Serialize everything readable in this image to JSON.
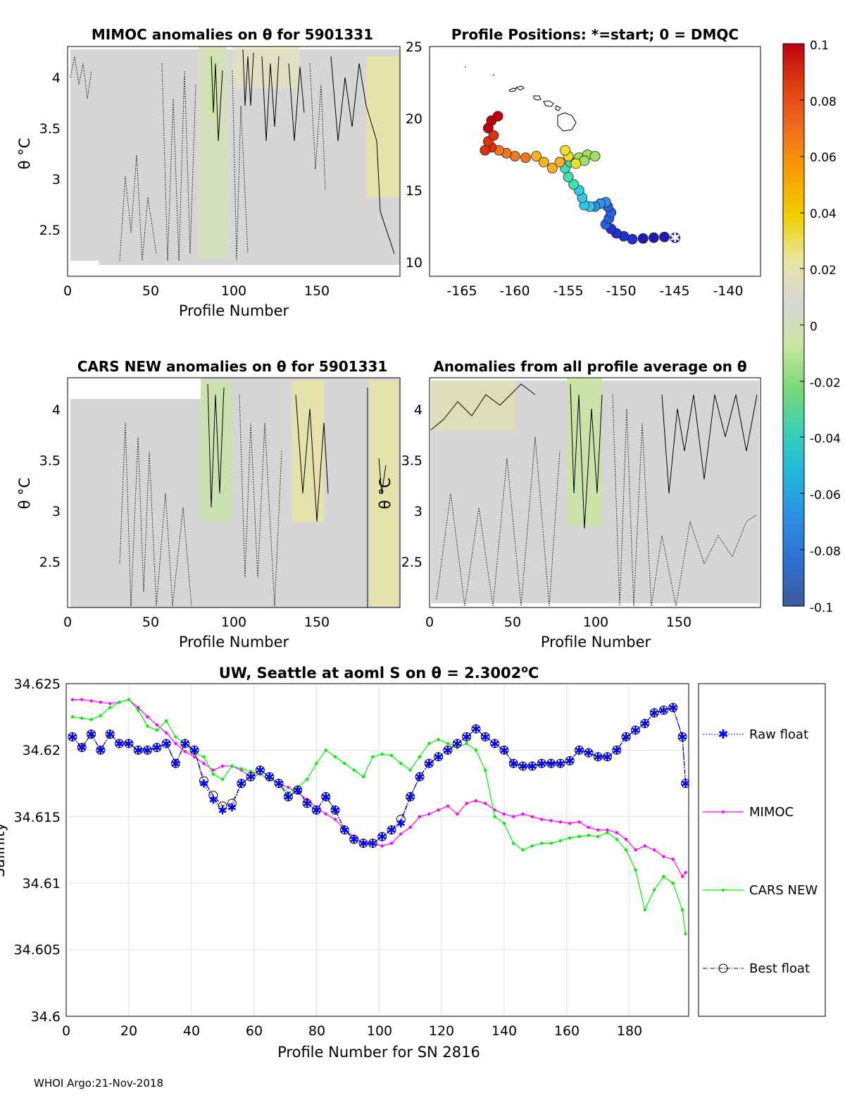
{
  "footer": "WHOI Argo:21-Nov-2018",
  "colorbar": {
    "ticks": [
      "0.1",
      "0.08",
      "0.06",
      "0.04",
      "0.02",
      "0",
      "-0.02",
      "-0.04",
      "-0.06",
      "-0.08",
      "-0.1"
    ],
    "range": [
      -0.1,
      0.1
    ],
    "colors": [
      "#3a5a9a",
      "#2e6fd0",
      "#2c8be0",
      "#22b4e0",
      "#38d0b8",
      "#78d878",
      "#c8e6a0",
      "#d6d6d6",
      "#e8e6a0",
      "#f0d000",
      "#f8a000",
      "#f07020",
      "#e04010",
      "#c00010"
    ]
  },
  "panels": {
    "mimoc_anom": {
      "title": "MIMOC anomalies on θ  for 5901331",
      "xlabel": "Profile Number",
      "ylabel": "θ °C",
      "xticks": [
        "0",
        "50",
        "100",
        "150"
      ],
      "yticks": [
        "4",
        "3.5",
        "3",
        "2.5"
      ]
    },
    "positions": {
      "title": "Profile Positions: *=start; 0 = DMQC",
      "xticks": [
        "-165",
        "-160",
        "-155",
        "-150",
        "-145",
        "-140"
      ],
      "yticks": [
        "25",
        "20",
        "15",
        "10"
      ]
    },
    "cars_anom": {
      "title": "CARS NEW anomalies on θ for 5901331",
      "xlabel": "Profile Number",
      "ylabel": "θ °C",
      "xticks": [
        "0",
        "50",
        "100",
        "150"
      ],
      "yticks": [
        "4",
        "3.5",
        "3",
        "2.5"
      ]
    },
    "avg_anom": {
      "title": "Anomalies from all profile average on θ",
      "xlabel": "Profile Number",
      "ylabel": "θ °C",
      "xticks": [
        "0",
        "50",
        "100",
        "150"
      ],
      "yticks": [
        "4",
        "3.5",
        "3",
        "2.5"
      ]
    },
    "salinity": {
      "title_main": "UW, Seattle at aoml S on θ = 2.3002",
      "title_sup": "o",
      "title_end": "C",
      "xlabel": "Profile Number for SN 2816",
      "ylabel": "Salinity",
      "xticks": [
        "0",
        "20",
        "40",
        "60",
        "80",
        "100",
        "120",
        "140",
        "160",
        "180"
      ],
      "yticks": [
        "34.625",
        "34.62",
        "34.615",
        "34.61",
        "34.605",
        "34.6"
      ],
      "legend": [
        "Raw float",
        "MIMOC",
        "CARS NEW",
        "Best float"
      ]
    }
  },
  "chart_data": [
    {
      "type": "heatmap",
      "id": "mimoc_anom",
      "title": "MIMOC anomalies on θ for 5901331",
      "xlabel": "Profile Number",
      "ylabel": "θ °C",
      "xlim": [
        0,
        200
      ],
      "ylim": [
        2.1,
        4.3
      ],
      "description_values": "mostly near 0 (grey); positive ~0.02 (yellow) near profile 190, 80-85 negative ~-0.01 (light green)"
    },
    {
      "type": "scatter",
      "id": "positions",
      "title": "Profile Positions: *=start; 0 = DMQC",
      "xlim": [
        -168,
        -137
      ],
      "ylim": [
        9.5,
        25
      ],
      "track": [
        [
          -145.0,
          12.1
        ],
        [
          -146.0,
          12.15
        ],
        [
          -147.0,
          12.1
        ],
        [
          -148.0,
          12.05
        ],
        [
          -149.0,
          12.0
        ],
        [
          -149.8,
          12.2
        ],
        [
          -150.5,
          12.4
        ],
        [
          -151.0,
          12.7
        ],
        [
          -151.5,
          13.0
        ],
        [
          -151.2,
          13.4
        ],
        [
          -151.0,
          13.8
        ],
        [
          -151.3,
          14.2
        ],
        [
          -151.5,
          14.5
        ],
        [
          -152.0,
          14.4
        ],
        [
          -152.5,
          14.2
        ],
        [
          -153.0,
          14.2
        ],
        [
          -153.5,
          14.3
        ],
        [
          -153.7,
          14.8
        ],
        [
          -154.0,
          15.3
        ],
        [
          -154.5,
          15.7
        ],
        [
          -155.0,
          16.2
        ],
        [
          -155.3,
          16.8
        ],
        [
          -154.8,
          17.2
        ],
        [
          -154.0,
          17.5
        ],
        [
          -153.2,
          17.7
        ],
        [
          -152.5,
          17.6
        ],
        [
          -153.5,
          17.3
        ],
        [
          -154.3,
          17.1
        ],
        [
          -155.0,
          17.6
        ],
        [
          -155.3,
          18.0
        ],
        [
          -155.8,
          17.2
        ],
        [
          -156.5,
          16.8
        ],
        [
          -157.3,
          17.2
        ],
        [
          -158.0,
          17.6
        ],
        [
          -159.0,
          17.5
        ],
        [
          -160.0,
          17.6
        ],
        [
          -160.8,
          17.8
        ],
        [
          -161.5,
          18.0
        ],
        [
          -162.2,
          18.2
        ],
        [
          -162.8,
          18.0
        ],
        [
          -162.5,
          18.6
        ],
        [
          -162.0,
          19.0
        ],
        [
          -162.5,
          19.5
        ],
        [
          -162.2,
          20.0
        ],
        [
          -161.6,
          20.3
        ]
      ]
    },
    {
      "type": "heatmap",
      "id": "cars_anom",
      "title": "CARS NEW anomalies on θ for 5901331",
      "xlabel": "Profile Number",
      "ylabel": "θ °C",
      "xlim": [
        0,
        200
      ],
      "ylim": [
        2.05,
        4.3
      ],
      "description_values": "mostly near 0; yellow (~0.01) bands near profiles 135-150 and 185-195; light green near 85-95"
    },
    {
      "type": "heatmap",
      "id": "avg_anom",
      "title": "Anomalies from all profile average on θ",
      "xlabel": "Profile Number",
      "ylabel": "θ °C",
      "xlim": [
        0,
        200
      ],
      "ylim": [
        2.05,
        4.3
      ],
      "description_values": "mostly near 0; light green (~-0.01) near profiles 85-100 above 3.2 °C"
    },
    {
      "type": "line",
      "id": "salinity",
      "title": "UW, Seattle at aoml S on θ = 2.3002 °C",
      "xlabel": "Profile Number for SN 2816",
      "ylabel": "Salinity",
      "xlim": [
        0,
        199
      ],
      "ylim": [
        34.6,
        34.625
      ],
      "series": [
        {
          "name": "MIMOC",
          "color": "#ff00ff",
          "x": [
            2,
            5,
            8,
            11,
            14,
            17,
            20,
            23,
            26,
            29,
            32,
            35,
            38,
            41,
            44,
            47,
            50,
            53,
            56,
            59,
            62,
            65,
            68,
            71,
            74,
            77,
            80,
            83,
            86,
            89,
            92,
            95,
            98,
            101,
            104,
            107,
            110,
            113,
            116,
            119,
            122,
            125,
            128,
            131,
            134,
            137,
            140,
            143,
            146,
            149,
            152,
            155,
            158,
            161,
            164,
            167,
            170,
            173,
            176,
            179,
            182,
            185,
            188,
            191,
            194,
            197,
            198
          ],
          "values": [
            34.6238,
            34.6238,
            34.6237,
            34.6236,
            34.6235,
            34.6236,
            34.6238,
            34.6232,
            34.6225,
            34.6219,
            34.6213,
            34.6205,
            34.6199,
            34.6195,
            34.619,
            34.6185,
            34.6188,
            34.6188,
            34.6185,
            34.618,
            34.6182,
            34.6178,
            34.6175,
            34.6172,
            34.6168,
            34.6163,
            34.6157,
            34.6152,
            34.6148,
            34.614,
            34.6135,
            34.613,
            34.613,
            34.6128,
            34.613,
            34.6137,
            34.6142,
            34.615,
            34.6152,
            34.6155,
            34.6158,
            34.6152,
            34.616,
            34.6162,
            34.616,
            34.6155,
            34.6152,
            34.615,
            34.6152,
            34.615,
            34.6148,
            34.6147,
            34.6146,
            34.6145,
            34.6146,
            34.6142,
            34.614,
            34.614,
            34.6138,
            34.6133,
            34.6125,
            34.6128,
            34.6125,
            34.612,
            34.6118,
            34.6105,
            34.6108
          ]
        },
        {
          "name": "CARS NEW",
          "color": "#00ee00",
          "x": [
            2,
            5,
            8,
            11,
            14,
            17,
            20,
            23,
            26,
            29,
            32,
            35,
            38,
            41,
            44,
            47,
            50,
            53,
            56,
            59,
            62,
            65,
            68,
            71,
            74,
            77,
            80,
            83,
            86,
            89,
            92,
            95,
            98,
            101,
            104,
            107,
            110,
            113,
            116,
            119,
            122,
            125,
            128,
            131,
            134,
            137,
            140,
            143,
            146,
            149,
            152,
            155,
            158,
            161,
            164,
            167,
            170,
            173,
            176,
            179,
            182,
            185,
            188,
            191,
            194,
            197,
            198
          ],
          "values": [
            34.6225,
            34.6224,
            34.6223,
            34.6226,
            34.6232,
            34.6236,
            34.6238,
            34.623,
            34.6218,
            34.6215,
            34.6222,
            34.621,
            34.6205,
            34.6198,
            34.6195,
            34.6182,
            34.6178,
            34.6188,
            34.6186,
            34.6184,
            34.6182,
            34.6178,
            34.6175,
            34.6168,
            34.6172,
            34.6178,
            34.619,
            34.62,
            34.6195,
            34.619,
            34.6185,
            34.618,
            34.6195,
            34.6197,
            34.6196,
            34.619,
            34.6185,
            34.6195,
            34.6205,
            34.6208,
            34.6205,
            34.6202,
            34.6205,
            34.62,
            34.6185,
            34.615,
            34.6145,
            34.613,
            34.6125,
            34.6128,
            34.613,
            34.613,
            34.6132,
            34.6134,
            34.6135,
            34.6136,
            34.6135,
            34.6138,
            34.6133,
            34.6125,
            34.611,
            34.608,
            34.6095,
            34.6105,
            34.61,
            34.608,
            34.6062
          ]
        },
        {
          "name": "Raw float",
          "color": "#0000ff",
          "x": [
            2,
            5,
            8,
            11,
            14,
            17,
            20,
            23,
            26,
            29,
            32,
            35,
            38,
            41,
            44,
            47,
            50,
            53,
            56,
            59,
            62,
            65,
            68,
            71,
            74,
            77,
            80,
            83,
            86,
            89,
            92,
            95,
            98,
            101,
            104,
            107,
            110,
            113,
            116,
            119,
            122,
            125,
            128,
            131,
            134,
            137,
            140,
            143,
            146,
            149,
            152,
            155,
            158,
            161,
            164,
            167,
            170,
            173,
            176,
            179,
            182,
            185,
            188,
            191,
            194,
            197,
            198
          ],
          "values": [
            34.621,
            34.6202,
            34.6212,
            34.62,
            34.6212,
            34.6205,
            34.6205,
            34.62,
            34.62,
            34.6202,
            34.6205,
            34.619,
            34.6205,
            34.62,
            34.6175,
            34.6163,
            34.6155,
            34.6157,
            34.6175,
            34.618,
            34.6185,
            34.618,
            34.6175,
            34.6165,
            34.617,
            34.616,
            34.6155,
            34.6165,
            34.6155,
            34.614,
            34.6133,
            34.613,
            34.613,
            34.6135,
            34.614,
            34.6145,
            34.6165,
            34.618,
            34.619,
            34.6195,
            34.62,
            34.6205,
            34.621,
            34.6216,
            34.621,
            34.6205,
            34.62,
            34.619,
            34.6188,
            34.6188,
            34.619,
            34.619,
            34.619,
            34.6192,
            34.62,
            34.6198,
            34.6195,
            34.6195,
            34.62,
            34.621,
            34.6215,
            34.622,
            34.6228,
            34.623,
            34.6232,
            34.621,
            34.6175
          ]
        },
        {
          "name": "Best float",
          "color": "#000000",
          "x": [
            2,
            5,
            8,
            11,
            14,
            17,
            20,
            23,
            26,
            29,
            32,
            35,
            38,
            41,
            44,
            47,
            50,
            53,
            56,
            59,
            62,
            65,
            68,
            71,
            74,
            77,
            80,
            83,
            86,
            89,
            92,
            95,
            98,
            101,
            104,
            107,
            110,
            113,
            116,
            119,
            122,
            125,
            128,
            131,
            134,
            137,
            140,
            143,
            146,
            149,
            152,
            155,
            158,
            161,
            164,
            167,
            170,
            173,
            176,
            179,
            182,
            185,
            188,
            191,
            194,
            197,
            198
          ],
          "values": [
            34.621,
            34.6202,
            34.6212,
            34.62,
            34.6212,
            34.6205,
            34.6205,
            34.62,
            34.62,
            34.6202,
            34.6205,
            34.619,
            34.6205,
            34.62,
            34.6177,
            34.6166,
            34.6158,
            34.616,
            34.6175,
            34.618,
            34.6185,
            34.618,
            34.6175,
            34.6165,
            34.617,
            34.616,
            34.6155,
            34.6165,
            34.6155,
            34.614,
            34.6133,
            34.613,
            34.613,
            34.6135,
            34.614,
            34.6148,
            34.6165,
            34.618,
            34.619,
            34.6195,
            34.62,
            34.6205,
            34.621,
            34.6216,
            34.621,
            34.6205,
            34.62,
            34.619,
            34.6188,
            34.6188,
            34.619,
            34.619,
            34.619,
            34.6192,
            34.62,
            34.6198,
            34.6195,
            34.6195,
            34.62,
            34.621,
            34.6215,
            34.622,
            34.6228,
            34.623,
            34.6232,
            34.621,
            34.6175
          ]
        }
      ]
    }
  ]
}
